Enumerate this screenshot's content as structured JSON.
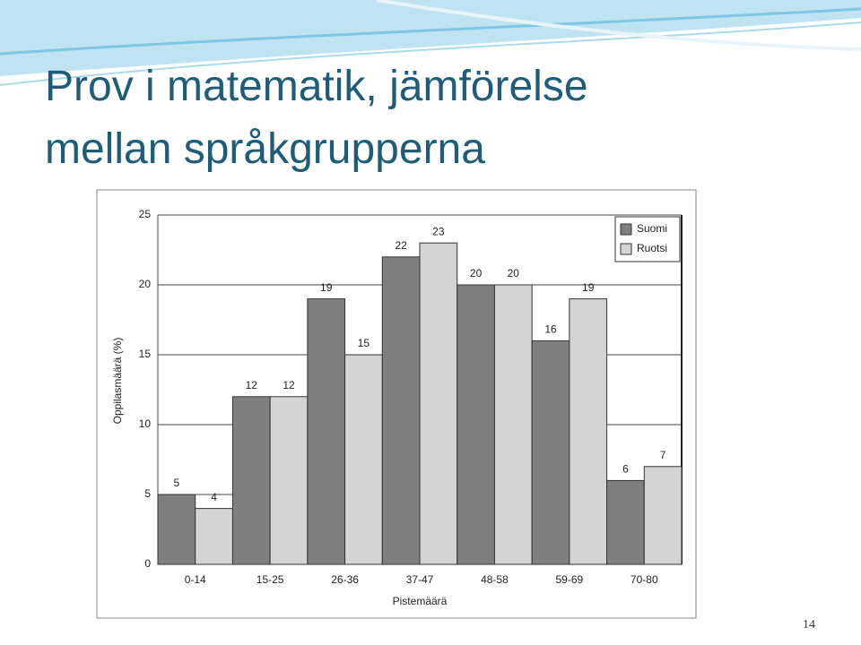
{
  "slide": {
    "title": "Prov i matematik, jämförelse mellan språkgrupperna",
    "page_number": "14"
  },
  "chart_data": {
    "type": "bar",
    "x_label": "Pistemäärä",
    "y_label": "Oppilasmäärä (%)",
    "categories": [
      "0-14",
      "15-25",
      "26-36",
      "37-47",
      "48-58",
      "59-69",
      "70-80"
    ],
    "series": [
      {
        "name": "Suomi",
        "color": "#7f7f7f",
        "values": [
          5,
          12,
          19,
          22,
          20,
          16,
          6
        ]
      },
      {
        "name": "Ruotsi",
        "color": "#d4d4d4",
        "values": [
          4,
          12,
          15,
          23,
          20,
          19,
          7
        ]
      }
    ],
    "ylim": [
      0,
      25
    ],
    "yticks": [
      0,
      5,
      10,
      15,
      20,
      25
    ],
    "grid": true,
    "legend": "top-right"
  }
}
